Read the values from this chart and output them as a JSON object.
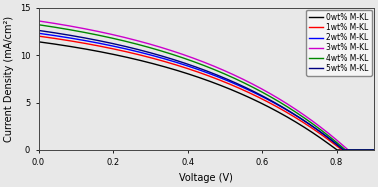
{
  "title": "",
  "xlabel": "Voltage (V)",
  "ylabel": "Current Density (mA/cm²)",
  "xlim": [
    0.0,
    0.9
  ],
  "ylim": [
    0,
    15
  ],
  "xticks": [
    0.0,
    0.2,
    0.4,
    0.6,
    0.8
  ],
  "yticks": [
    0,
    5,
    10,
    15
  ],
  "series": [
    {
      "label": "0wt% M-KL",
      "color": "#000000",
      "jsc": 11.4,
      "voc": 0.795,
      "ideality": 18
    },
    {
      "label": "1wt% M-KL",
      "color": "#ff0000",
      "jsc": 12.0,
      "voc": 0.808,
      "ideality": 18
    },
    {
      "label": "2wt% M-KL",
      "color": "#0000ff",
      "jsc": 12.3,
      "voc": 0.815,
      "ideality": 18
    },
    {
      "label": "3wt% M-KL",
      "color": "#cc00cc",
      "jsc": 13.6,
      "voc": 0.825,
      "ideality": 18
    },
    {
      "label": "4wt% M-KL",
      "color": "#008800",
      "jsc": 13.2,
      "voc": 0.818,
      "ideality": 18
    },
    {
      "label": "5wt% M-KL",
      "color": "#000080",
      "jsc": 12.6,
      "voc": 0.812,
      "ideality": 18
    }
  ],
  "linewidth": 1.0,
  "figsize": [
    3.78,
    1.87
  ],
  "dpi": 100,
  "background_color": "#e8e8e8",
  "legend_fontsize": 5.5,
  "axis_fontsize": 7,
  "tick_fontsize": 6
}
